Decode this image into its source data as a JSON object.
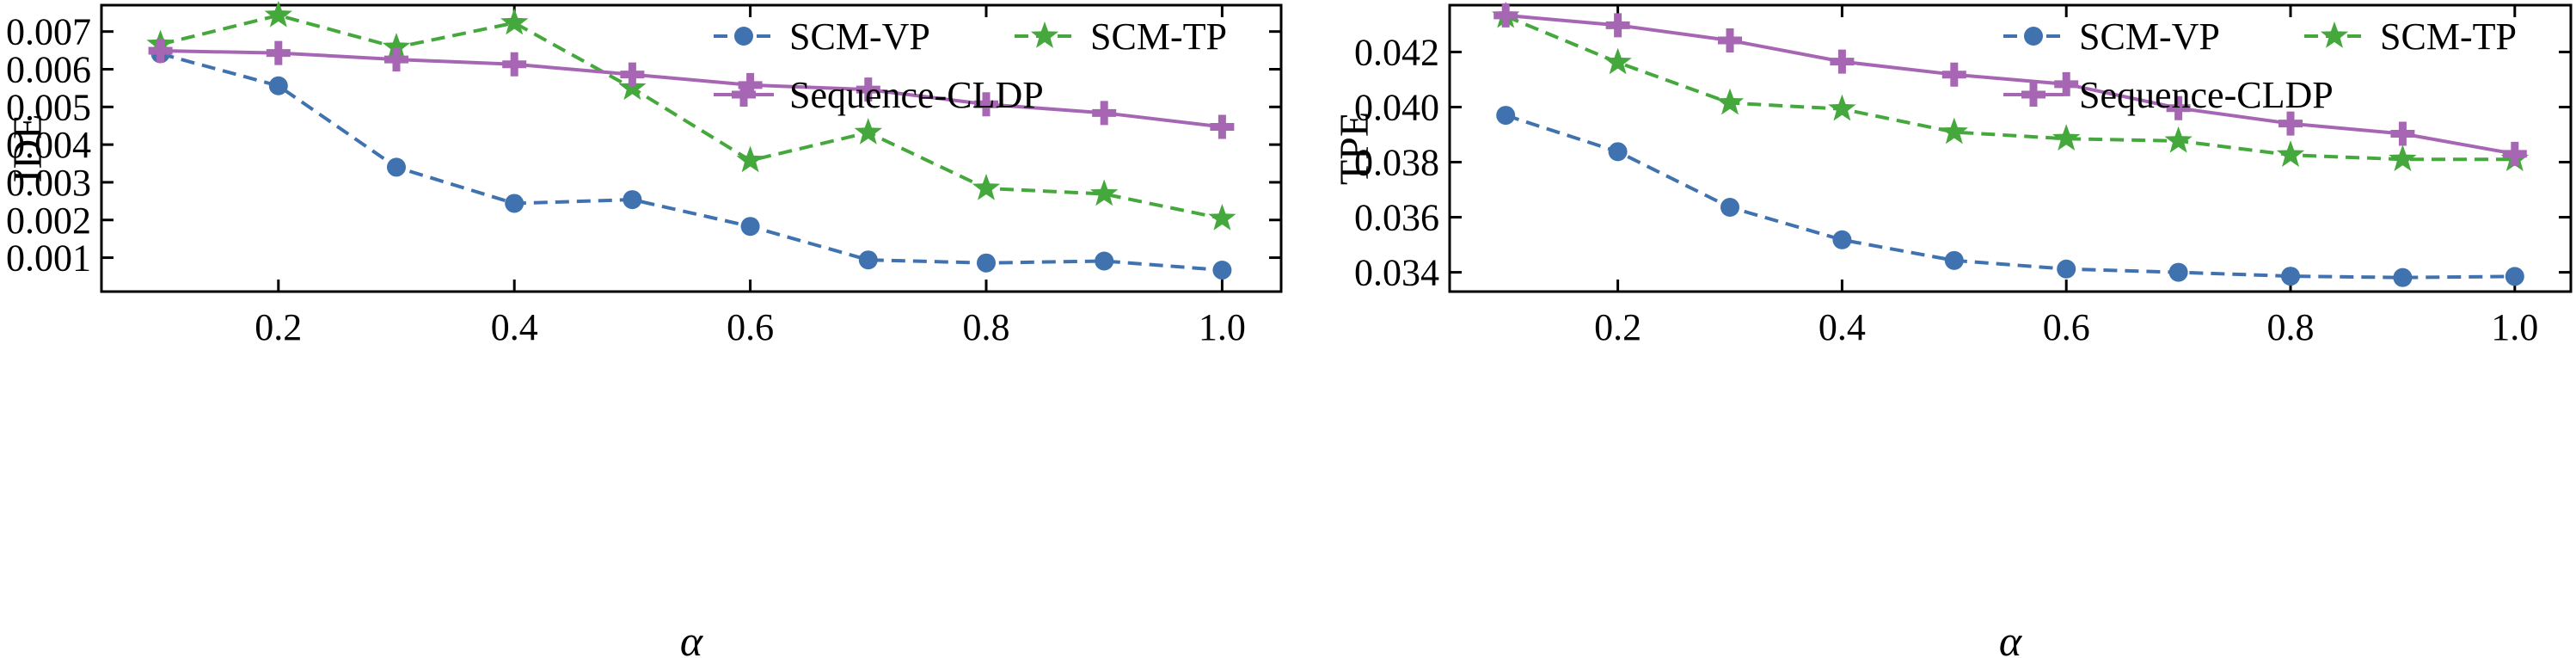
{
  "chart_data": [
    {
      "type": "line",
      "title": "",
      "xlabel": "α",
      "ylabel": "IDE",
      "xlim": [
        0.05,
        1.05
      ],
      "ylim": [
        0.0001,
        0.0077
      ],
      "xticks": [
        0.2,
        0.4,
        0.6,
        0.8,
        1.0
      ],
      "xtick_labels": [
        "0.2",
        "0.4",
        "0.6",
        "0.8",
        "1.0"
      ],
      "yticks": [
        0.001,
        0.002,
        0.003,
        0.004,
        0.005,
        0.006,
        0.007
      ],
      "ytick_labels": [
        "0.001",
        "0.002",
        "0.003",
        "0.004",
        "0.005",
        "0.006",
        "0.007"
      ],
      "legend": "top-right",
      "grid": false,
      "x": [
        0.1,
        0.2,
        0.3,
        0.4,
        0.5,
        0.6,
        0.7,
        0.8,
        0.9,
        1.0
      ],
      "series": [
        {
          "name": "SCM-VP",
          "marker": "circle",
          "dash": true,
          "color": "#3F72AF",
          "values": [
            0.00641,
            0.00556,
            0.0034,
            0.00244,
            0.00254,
            0.00183,
            0.00094,
            0.00086,
            0.00091,
            0.00067
          ]
        },
        {
          "name": "SCM-TP",
          "marker": "star",
          "dash": true,
          "color": "#45A83C",
          "values": [
            0.00666,
            0.00743,
            0.00658,
            0.00723,
            0.0055,
            0.00358,
            0.00432,
            0.00284,
            0.00269,
            0.00204
          ]
        },
        {
          "name": "Sequence-CLDP",
          "marker": "plus",
          "dash": false,
          "color": "#A766B4",
          "values": [
            0.00649,
            0.00643,
            0.00626,
            0.00613,
            0.00586,
            0.00558,
            0.00546,
            0.00507,
            0.00484,
            0.00447
          ]
        }
      ]
    },
    {
      "type": "line",
      "title": "",
      "xlabel": "α",
      "ylabel": "TPE",
      "xlim": [
        0.05,
        1.05
      ],
      "ylim": [
        0.0333,
        0.0437
      ],
      "xticks": [
        0.2,
        0.4,
        0.6,
        0.8,
        1.0
      ],
      "xtick_labels": [
        "0.2",
        "0.4",
        "0.6",
        "0.8",
        "1.0"
      ],
      "yticks": [
        0.034,
        0.036,
        0.038,
        0.04,
        0.042
      ],
      "ytick_labels": [
        "0.034",
        "0.036",
        "0.038",
        "0.040",
        "0.042"
      ],
      "legend": "top-right",
      "grid": false,
      "x": [
        0.1,
        0.2,
        0.3,
        0.4,
        0.5,
        0.6,
        0.7,
        0.8,
        0.9,
        1.0
      ],
      "series": [
        {
          "name": "SCM-VP",
          "marker": "circle",
          "dash": true,
          "color": "#3F72AF",
          "values": [
            0.0397,
            0.03838,
            0.03636,
            0.03518,
            0.03443,
            0.03412,
            0.034,
            0.03386,
            0.03381,
            0.03385
          ]
        },
        {
          "name": "SCM-TP",
          "marker": "star",
          "dash": true,
          "color": "#45A83C",
          "values": [
            0.0433,
            0.04162,
            0.04015,
            0.03993,
            0.03909,
            0.03885,
            0.03877,
            0.03826,
            0.0381,
            0.0381
          ]
        },
        {
          "name": "Sequence-CLDP",
          "marker": "plus",
          "dash": false,
          "color": "#A766B4",
          "values": [
            0.04333,
            0.04297,
            0.04242,
            0.04165,
            0.04118,
            0.04083,
            0.03996,
            0.0394,
            0.03903,
            0.0383
          ]
        }
      ]
    }
  ]
}
